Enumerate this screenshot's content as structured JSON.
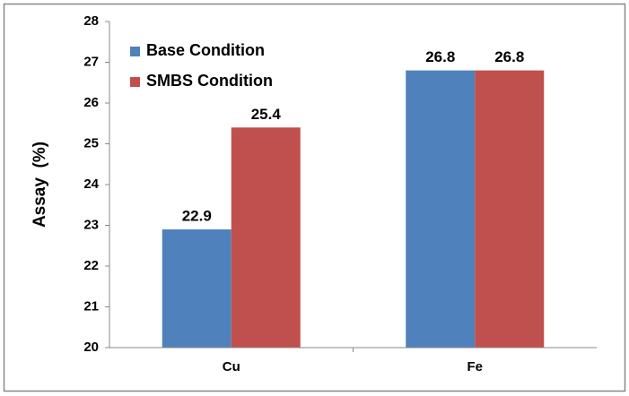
{
  "chart_data": {
    "type": "bar",
    "y_label": "Assay  (%)",
    "categories": [
      "Cu",
      "Fe"
    ],
    "series": [
      {
        "name": "Base Condition",
        "color": "#4f81bd",
        "values": [
          22.9,
          26.8
        ]
      },
      {
        "name": "SMBS Condition",
        "color": "#c0504d",
        "values": [
          25.4,
          26.8
        ]
      }
    ],
    "ylim": [
      20,
      28
    ],
    "yticks": [
      20,
      21,
      22,
      23,
      24,
      25,
      26,
      27,
      28
    ],
    "grid": false,
    "legend": "top-left"
  }
}
